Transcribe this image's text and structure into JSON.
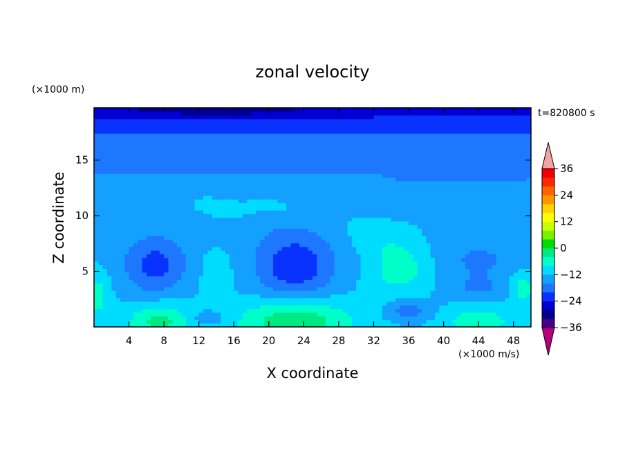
{
  "chart_data": {
    "type": "heatmap",
    "title": "zonal velocity",
    "time_label": "t=820800 s",
    "xlabel": "X coordinate",
    "ylabel": "Z coordinate",
    "x_unit": "(×1000 m/s)",
    "y_unit": "(×1000 m)",
    "xlim": [
      0,
      50
    ],
    "ylim": [
      0,
      19.7
    ],
    "x_ticks": [
      "4",
      "8",
      "12",
      "16",
      "20",
      "24",
      "28",
      "32",
      "36",
      "40",
      "44",
      "48"
    ],
    "y_ticks": [
      "5",
      "10",
      "15"
    ],
    "colorbar": {
      "min": -42,
      "max": 42,
      "step": 6,
      "tick_labels": [
        "36",
        "24",
        "12",
        "0",
        "−12",
        "−24",
        "−36"
      ],
      "colors": [
        "#b4007c",
        "#46008c",
        "#00008c",
        "#0000d2",
        "#0a32ff",
        "#1e78ff",
        "#14a0ff",
        "#00dcff",
        "#00ffc8",
        "#00e882",
        "#00dc00",
        "#78f000",
        "#c8ff00",
        "#ffff00",
        "#ffd200",
        "#ff9600",
        "#ff6400",
        "#ff2800",
        "#f00000",
        "#f4a3a3"
      ]
    }
  }
}
